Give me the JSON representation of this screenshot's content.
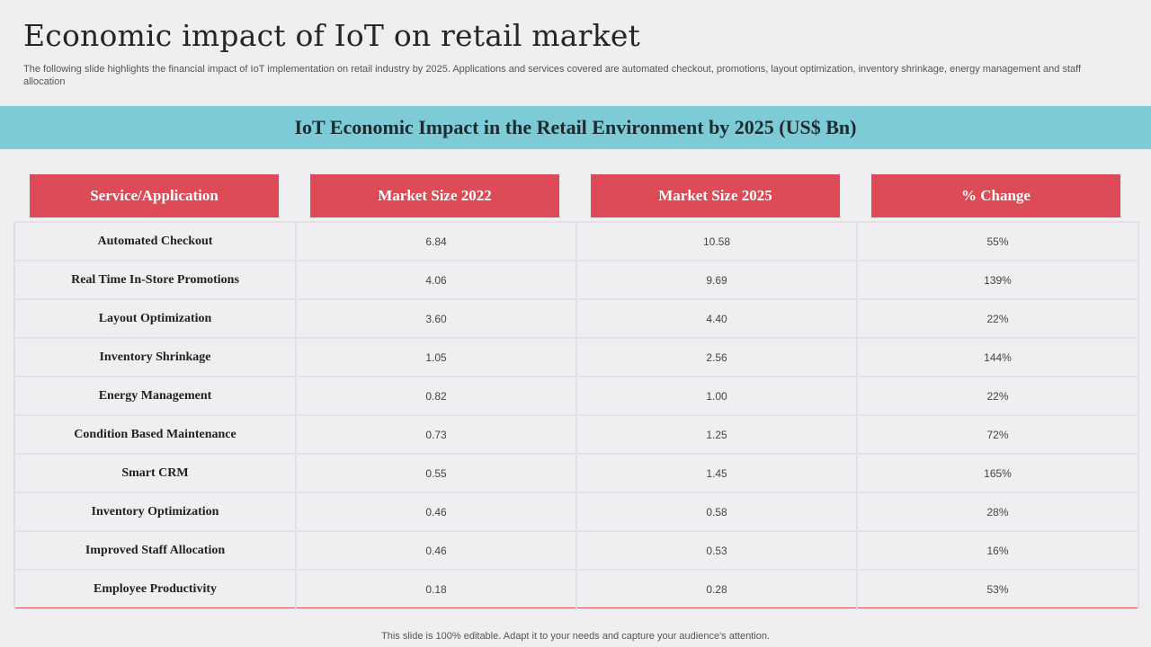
{
  "slide": {
    "title": "Economic impact of IoT on retail market",
    "subtitle": "The following slide highlights the financial impact of IoT  implementation on retail industry by 2025. Applications and services covered are automated checkout, promotions, layout optimization, inventory shrinkage, energy management and staff allocation",
    "footer": "This slide is 100% editable. Adapt it to your needs and capture your audience's attention."
  },
  "banner": {
    "title": "IoT Economic Impact in the Retail Environment by 2025 (US$ Bn)"
  },
  "table": {
    "headers": [
      "Service/Application",
      "Market Size 2022",
      "Market Size 2025",
      "% Change"
    ],
    "rows": [
      {
        "service": "Automated Checkout",
        "size_2022": "6.84",
        "size_2025": "10.58",
        "change": "55%"
      },
      {
        "service": "Real Time In-Store Promotions",
        "size_2022": "4.06",
        "size_2025": "9.69",
        "change": "139%"
      },
      {
        "service": "Layout Optimization",
        "size_2022": "3.60",
        "size_2025": "4.40",
        "change": "22%"
      },
      {
        "service": "Inventory Shrinkage",
        "size_2022": "1.05",
        "size_2025": "2.56",
        "change": "144%"
      },
      {
        "service": "Energy Management",
        "size_2022": "0.82",
        "size_2025": "1.00",
        "change": "22%"
      },
      {
        "service": "Condition Based Maintenance",
        "size_2022": "0.73",
        "size_2025": "1.25",
        "change": "72%"
      },
      {
        "service": "Smart CRM",
        "size_2022": "0.55",
        "size_2025": "1.45",
        "change": "165%"
      },
      {
        "service": "Inventory Optimization",
        "size_2022": "0.46",
        "size_2025": "0.58",
        "change": "28%"
      },
      {
        "service": "Improved Staff Allocation",
        "size_2022": "0.46",
        "size_2025": "0.53",
        "change": "16%"
      },
      {
        "service": "Employee Productivity",
        "size_2022": "0.18",
        "size_2025": "0.28",
        "change": "53%"
      }
    ]
  },
  "colors": {
    "banner": "#7ccbd7",
    "header": "#dd4b56",
    "background": "#efeff1"
  }
}
